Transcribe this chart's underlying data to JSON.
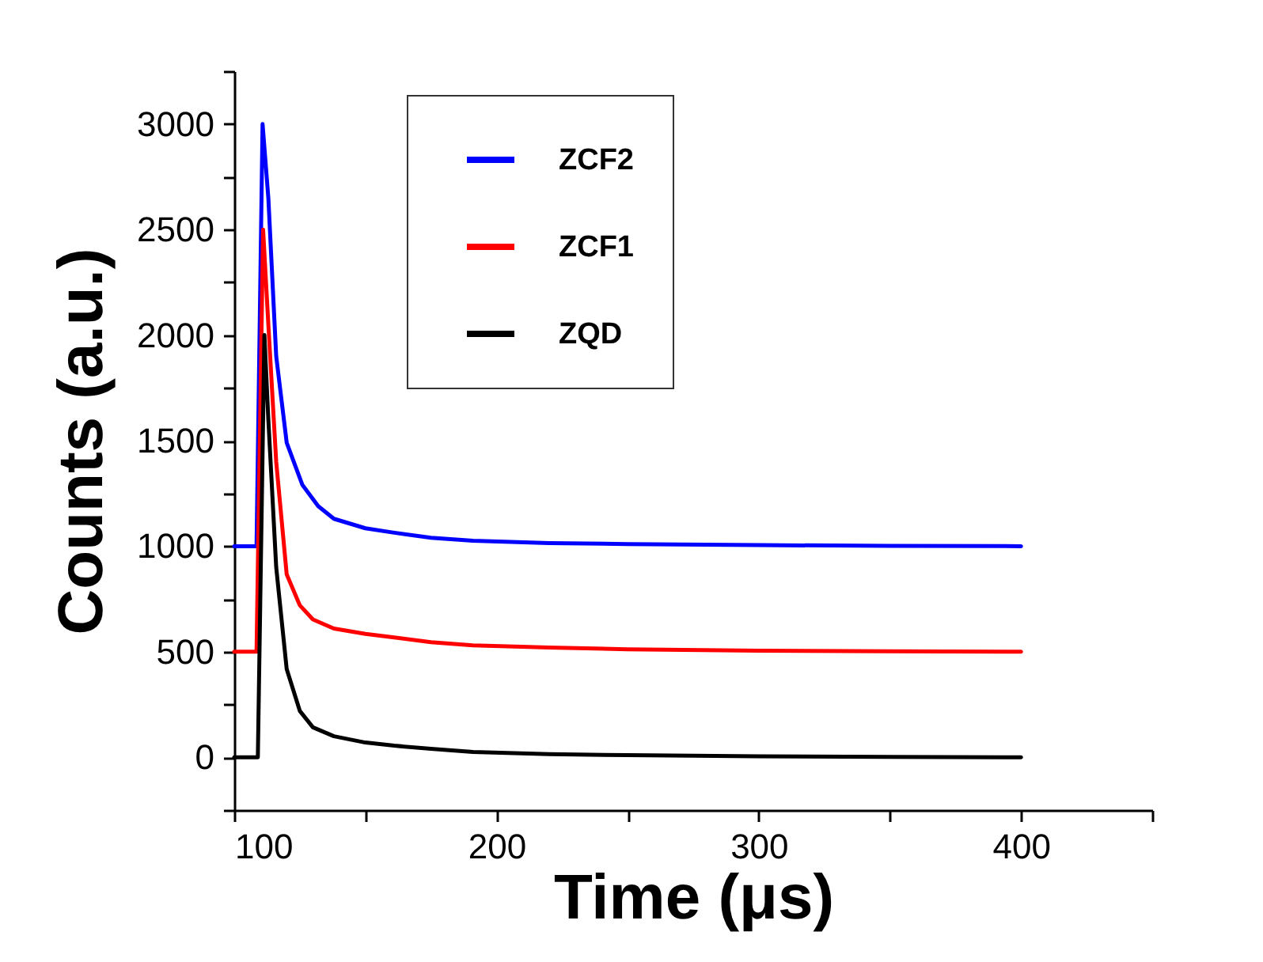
{
  "chart_data": {
    "type": "line",
    "xlabel": "Time (μs)",
    "ylabel": "Counts (a.u.)",
    "xlim": [
      100,
      450
    ],
    "xticks": [
      100,
      {
        "value": 150,
        "label": null
      },
      200,
      {
        "value": 250,
        "label": null
      },
      300,
      {
        "value": 350,
        "label": null
      },
      400,
      {
        "value": 450,
        "label": null
      }
    ],
    "ylim": [
      -250,
      3250
    ],
    "yticks": [
      {
        "value": -250,
        "label": null
      },
      0,
      {
        "value": 250,
        "label": null
      },
      500,
      {
        "value": 750,
        "label": null
      },
      1000,
      {
        "value": 1250,
        "label": null
      },
      1500,
      {
        "value": 1750,
        "label": null
      },
      2000,
      {
        "value": 2250,
        "label": null
      },
      2500,
      {
        "value": 2750,
        "label": null
      },
      3000,
      {
        "value": 3250,
        "label": null
      }
    ],
    "grid": false,
    "legend": "top",
    "marker": "none",
    "line_style": "solid",
    "series": [
      {
        "name": "ZCF2",
        "color": "#0000ff",
        "x": [
          100,
          108.5,
          110.8,
          113,
          116,
          120,
          126,
          132,
          138,
          150,
          161,
          175,
          191,
          220,
          250,
          300,
          350,
          400
        ],
        "values": [
          1000,
          1000,
          3000,
          2650,
          1900,
          1490,
          1290,
          1190,
          1130,
          1085,
          1064,
          1040,
          1026,
          1015,
          1010,
          1005,
          1002,
          1000
        ]
      },
      {
        "name": "ZCF1",
        "color": "#ff0000",
        "x": [
          100,
          108.5,
          111,
          113,
          116,
          120,
          125,
          130,
          138,
          150,
          161,
          175,
          191,
          220,
          250,
          300,
          350,
          400
        ],
        "values": [
          500,
          500,
          2500,
          2050,
          1400,
          867,
          720,
          653,
          610,
          585,
          568,
          545,
          530,
          520,
          512,
          505,
          502,
          500
        ]
      },
      {
        "name": "ZQD",
        "color": "#000000",
        "x": [
          100,
          109,
          111.5,
          113,
          116,
          120,
          125,
          130,
          138,
          150,
          161,
          175,
          191,
          220,
          250,
          300,
          350,
          400
        ],
        "values": [
          0,
          0,
          2000,
          1600,
          900,
          418,
          220,
          142,
          100,
          70,
          55,
          40,
          25,
          15,
          10,
          5,
          2,
          0
        ]
      }
    ]
  }
}
